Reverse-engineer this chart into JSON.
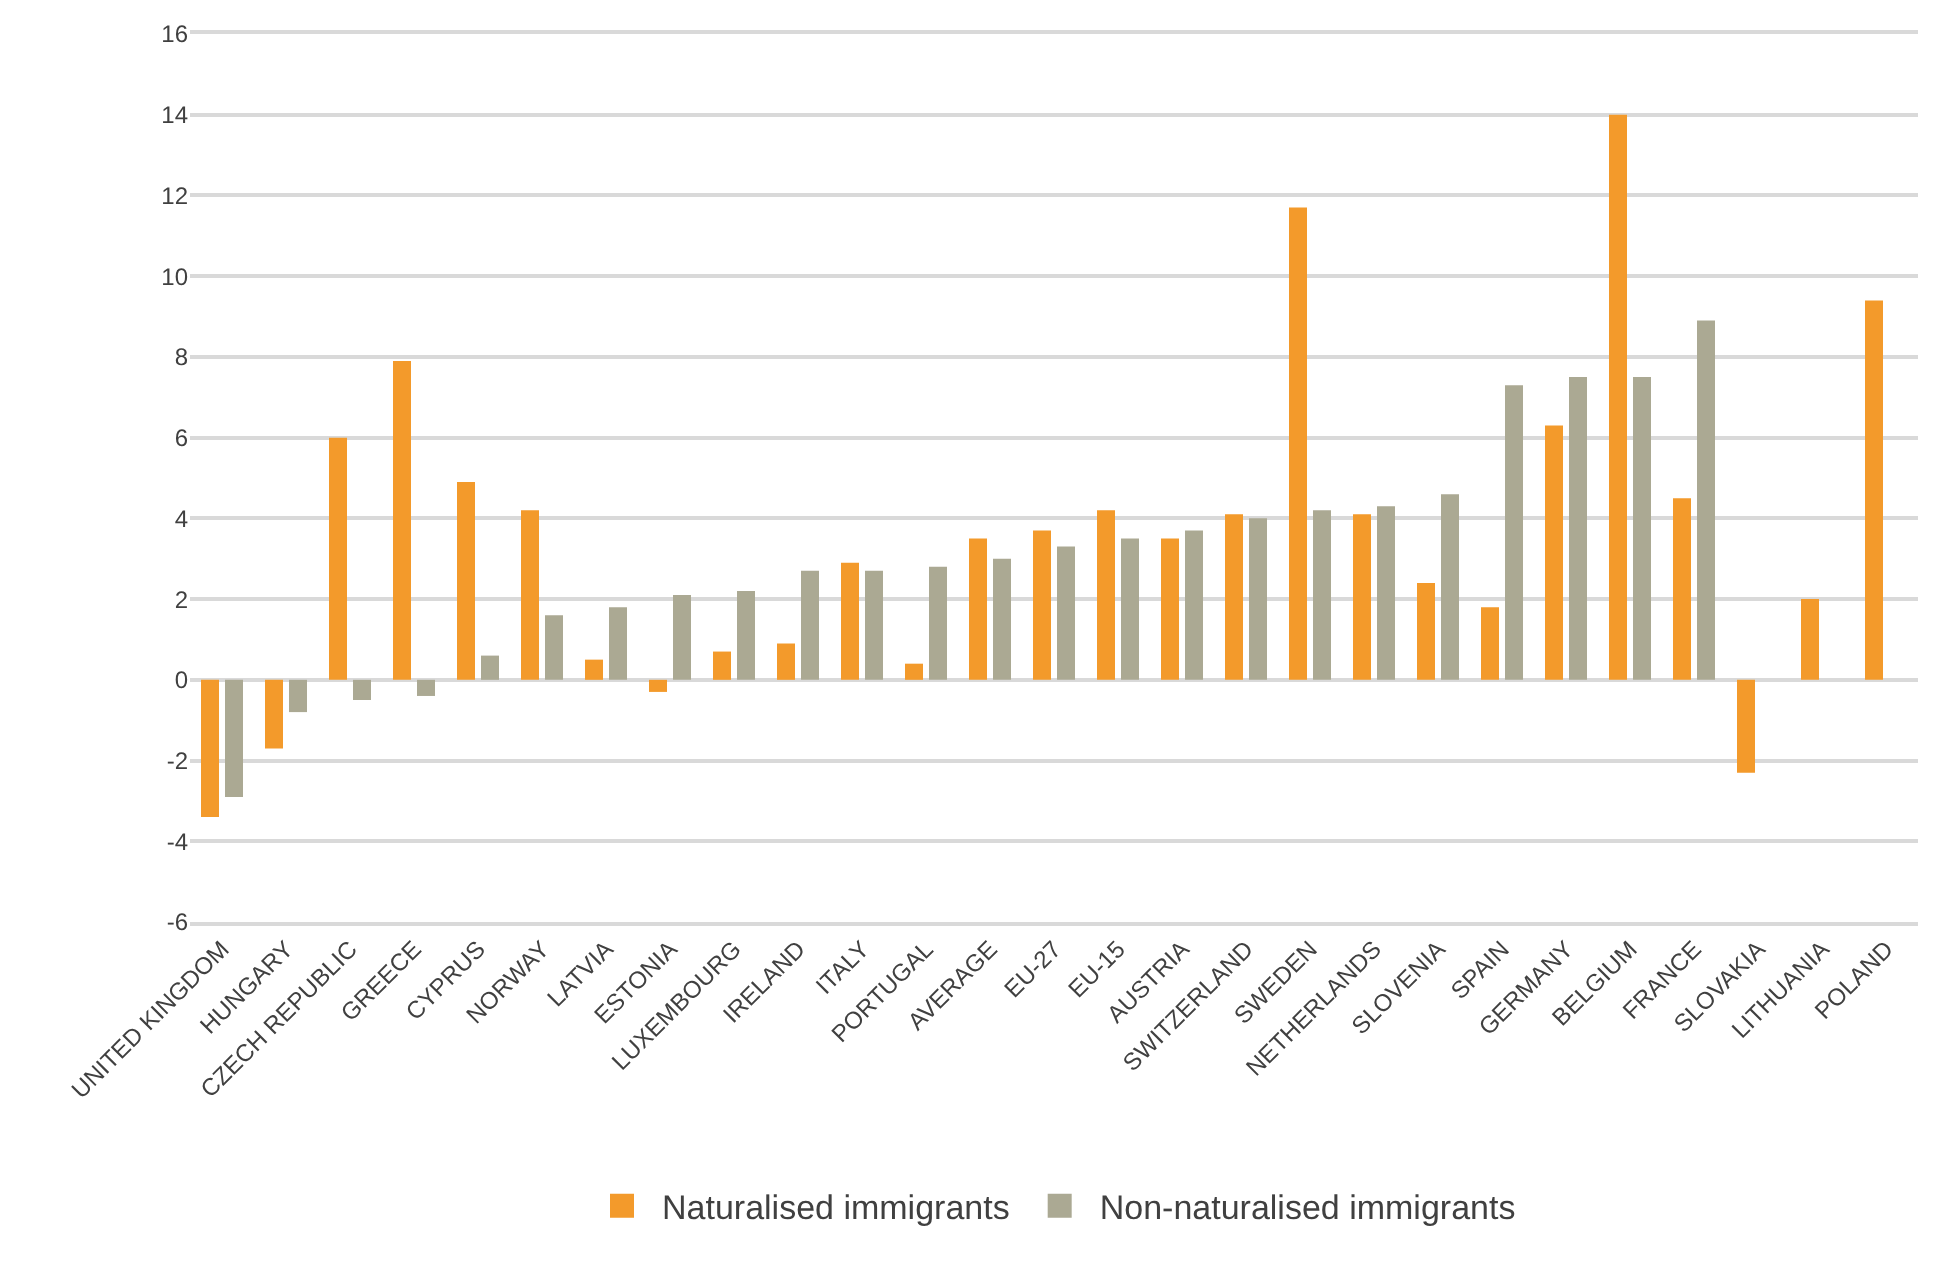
{
  "chart_data": {
    "type": "bar",
    "categories": [
      "UNITED KINGDOM",
      "HUNGARY",
      "CZECH REPUBLIC",
      "GREECE",
      "CYPRUS",
      "NORWAY",
      "LATVIA",
      "ESTONIA",
      "LUXEMBOURG",
      "IRELAND",
      "ITALY",
      "PORTUGAL",
      "AVERAGE",
      "EU-27",
      "EU-15",
      "AUSTRIA",
      "SWITZERLAND",
      "SWEDEN",
      "NETHERLANDS",
      "SLOVENIA",
      "SPAIN",
      "GERMANY",
      "BELGIUM",
      "FRANCE",
      "SLOVAKIA",
      "LITHUANIA",
      "POLAND"
    ],
    "series": [
      {
        "name": "Naturalised immigrants",
        "color": "#f39a2b",
        "values": [
          -3.4,
          -1.7,
          6.0,
          7.9,
          4.9,
          4.2,
          0.5,
          -0.3,
          0.7,
          0.9,
          2.9,
          0.4,
          3.5,
          3.7,
          4.2,
          3.5,
          4.1,
          11.7,
          4.1,
          2.4,
          1.8,
          6.3,
          14.0,
          4.5,
          -2.3,
          2.0,
          9.4
        ]
      },
      {
        "name": "Non-naturalised immigrants",
        "color": "#aba993",
        "values": [
          -2.9,
          -0.8,
          -0.5,
          -0.4,
          0.6,
          1.6,
          1.8,
          2.1,
          2.2,
          2.7,
          2.7,
          2.8,
          3.0,
          3.3,
          3.5,
          3.7,
          4.0,
          4.2,
          4.3,
          4.6,
          7.3,
          7.5,
          7.5,
          8.9,
          null,
          null,
          null
        ]
      }
    ],
    "ylim": [
      -6,
      16
    ],
    "yticks": [
      -6,
      -4,
      -2,
      0,
      2,
      4,
      6,
      8,
      10,
      12,
      14,
      16
    ],
    "grid": "y",
    "legend": "bottom"
  }
}
